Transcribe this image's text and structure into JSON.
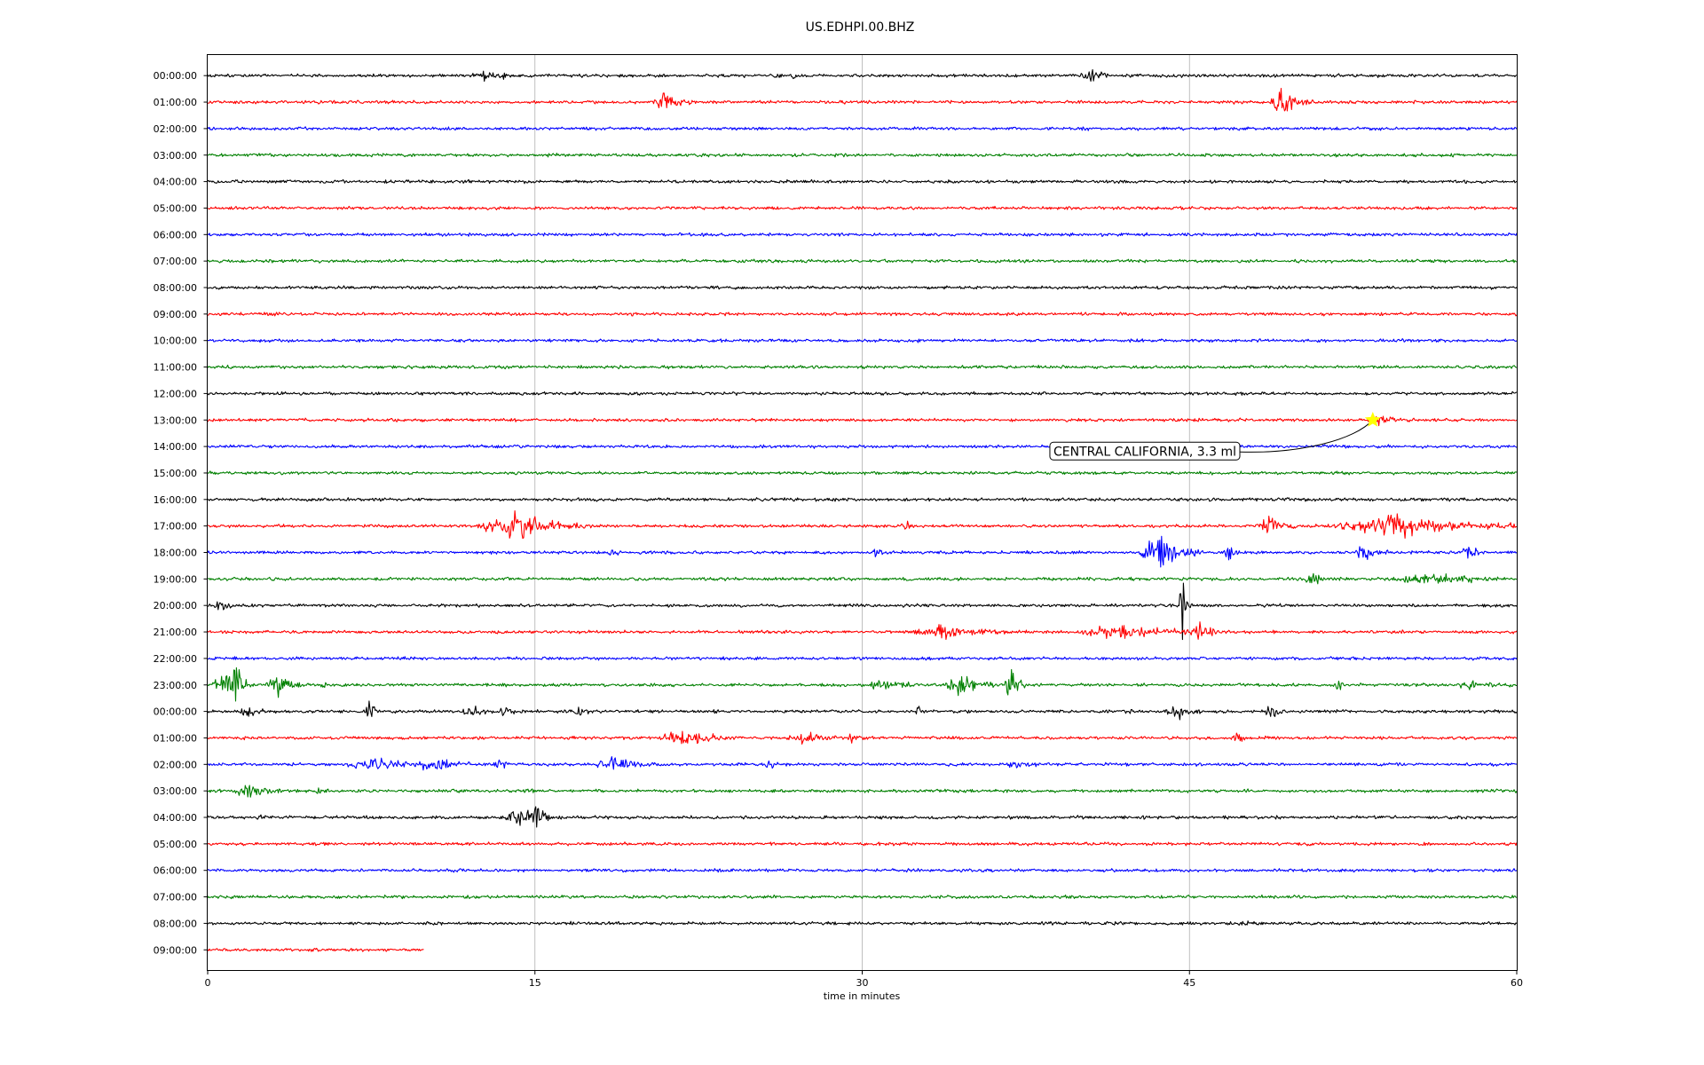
{
  "chart_data": {
    "type": "line",
    "title": "US.EDHPI.00.BHZ",
    "xlabel": "time in minutes",
    "ylabel": "",
    "xlim": [
      0,
      60
    ],
    "xticks": [
      "0",
      "15",
      "30",
      "45",
      "60"
    ],
    "grid": "vertical lines at 15, 30 and 45 minutes",
    "trace_colors": [
      "#000000",
      "#ff0000",
      "#0000ff",
      "#008000"
    ],
    "row_labels": [
      "00:00:00",
      "01:00:00",
      "02:00:00",
      "03:00:00",
      "04:00:00",
      "05:00:00",
      "06:00:00",
      "07:00:00",
      "08:00:00",
      "09:00:00",
      "10:00:00",
      "11:00:00",
      "12:00:00",
      "13:00:00",
      "14:00:00",
      "15:00:00",
      "16:00:00",
      "17:00:00",
      "18:00:00",
      "19:00:00",
      "20:00:00",
      "21:00:00",
      "22:00:00",
      "23:00:00",
      "00:00:00",
      "01:00:00",
      "02:00:00",
      "03:00:00",
      "04:00:00",
      "05:00:00",
      "06:00:00",
      "07:00:00",
      "08:00:00",
      "09:00:00"
    ],
    "last_row_end_minute": 9.9,
    "event": {
      "label": "CENTRAL CALIFORNIA, 3.3 ml",
      "row": 13,
      "minute": 53.4,
      "marker": "star-icon",
      "marker_color": "#ffff00"
    },
    "bursts": [
      {
        "row": 0,
        "minute": 12.8,
        "amp": 0.35,
        "dur": 1.5
      },
      {
        "row": 0,
        "minute": 26.9,
        "amp": 0.25,
        "dur": 0.3
      },
      {
        "row": 0,
        "minute": 40.5,
        "amp": 0.55,
        "dur": 0.8
      },
      {
        "row": 1,
        "minute": 5.1,
        "amp": 0.3,
        "dur": 0.2
      },
      {
        "row": 1,
        "minute": 20.9,
        "amp": 0.55,
        "dur": 1.3
      },
      {
        "row": 1,
        "minute": 49.2,
        "amp": 1.2,
        "dur": 0.9
      },
      {
        "row": 1,
        "minute": 50.3,
        "amp": 0.45,
        "dur": 0.4
      },
      {
        "row": 13,
        "minute": 53.8,
        "amp": 0.35,
        "dur": 0.8
      },
      {
        "row": 17,
        "minute": 14.1,
        "amp": 1.0,
        "dur": 3.0
      },
      {
        "row": 17,
        "minute": 32.0,
        "amp": 0.3,
        "dur": 0.4
      },
      {
        "row": 17,
        "minute": 48.7,
        "amp": 0.7,
        "dur": 1.2
      },
      {
        "row": 17,
        "minute": 54.5,
        "amp": 0.8,
        "dur": 5.0
      },
      {
        "row": 18,
        "minute": 18.6,
        "amp": 0.3,
        "dur": 0.4
      },
      {
        "row": 18,
        "minute": 30.6,
        "amp": 0.3,
        "dur": 0.4
      },
      {
        "row": 18,
        "minute": 43.6,
        "amp": 1.7,
        "dur": 1.6
      },
      {
        "row": 18,
        "minute": 46.8,
        "amp": 0.6,
        "dur": 0.5
      },
      {
        "row": 18,
        "minute": 53.0,
        "amp": 0.55,
        "dur": 0.9
      },
      {
        "row": 18,
        "minute": 57.8,
        "amp": 0.5,
        "dur": 0.6
      },
      {
        "row": 19,
        "minute": 50.6,
        "amp": 0.55,
        "dur": 0.8
      },
      {
        "row": 19,
        "minute": 56.0,
        "amp": 0.4,
        "dur": 3.0
      },
      {
        "row": 20,
        "minute": 0.6,
        "amp": 0.5,
        "dur": 0.6
      },
      {
        "row": 20,
        "minute": 44.7,
        "amp": 2.6,
        "dur": 0.3
      },
      {
        "row": 21,
        "minute": 33.8,
        "amp": 0.45,
        "dur": 2.5
      },
      {
        "row": 21,
        "minute": 41.9,
        "amp": 0.5,
        "dur": 3.5
      },
      {
        "row": 21,
        "minute": 45.5,
        "amp": 0.5,
        "dur": 0.8
      },
      {
        "row": 23,
        "minute": 0.8,
        "amp": 1.2,
        "dur": 1.0
      },
      {
        "row": 23,
        "minute": 1.3,
        "amp": 1.5,
        "dur": 0.4
      },
      {
        "row": 23,
        "minute": 3.2,
        "amp": 0.9,
        "dur": 1.0
      },
      {
        "row": 23,
        "minute": 5.3,
        "amp": 0.35,
        "dur": 0.3
      },
      {
        "row": 23,
        "minute": 31.0,
        "amp": 0.35,
        "dur": 1.5
      },
      {
        "row": 23,
        "minute": 34.6,
        "amp": 0.7,
        "dur": 1.4
      },
      {
        "row": 23,
        "minute": 36.8,
        "amp": 1.5,
        "dur": 0.6
      },
      {
        "row": 23,
        "minute": 51.8,
        "amp": 0.35,
        "dur": 0.5
      },
      {
        "row": 23,
        "minute": 58.0,
        "amp": 0.25,
        "dur": 1.5
      },
      {
        "row": 24,
        "minute": 1.8,
        "amp": 0.4,
        "dur": 1.0
      },
      {
        "row": 24,
        "minute": 7.4,
        "amp": 0.8,
        "dur": 0.4
      },
      {
        "row": 24,
        "minute": 12.1,
        "amp": 0.7,
        "dur": 0.8
      },
      {
        "row": 24,
        "minute": 13.6,
        "amp": 0.45,
        "dur": 0.4
      },
      {
        "row": 24,
        "minute": 17.0,
        "amp": 0.3,
        "dur": 0.6
      },
      {
        "row": 24,
        "minute": 32.6,
        "amp": 0.3,
        "dur": 0.4
      },
      {
        "row": 24,
        "minute": 42.0,
        "amp": 0.35,
        "dur": 0.4
      },
      {
        "row": 24,
        "minute": 44.5,
        "amp": 0.5,
        "dur": 1.0
      },
      {
        "row": 24,
        "minute": 48.8,
        "amp": 0.9,
        "dur": 0.6
      },
      {
        "row": 25,
        "minute": 21.8,
        "amp": 0.55,
        "dur": 2.0
      },
      {
        "row": 25,
        "minute": 27.4,
        "amp": 0.45,
        "dur": 1.5
      },
      {
        "row": 25,
        "minute": 29.5,
        "amp": 0.3,
        "dur": 0.4
      },
      {
        "row": 25,
        "minute": 47.2,
        "amp": 0.35,
        "dur": 0.4
      },
      {
        "row": 26,
        "minute": 7.8,
        "amp": 0.35,
        "dur": 3.0
      },
      {
        "row": 26,
        "minute": 10.4,
        "amp": 0.5,
        "dur": 1.5
      },
      {
        "row": 26,
        "minute": 13.4,
        "amp": 0.4,
        "dur": 0.5
      },
      {
        "row": 26,
        "minute": 18.6,
        "amp": 0.5,
        "dur": 1.6
      },
      {
        "row": 26,
        "minute": 25.7,
        "amp": 0.3,
        "dur": 0.4
      },
      {
        "row": 26,
        "minute": 37.0,
        "amp": 0.25,
        "dur": 1.0
      },
      {
        "row": 27,
        "minute": 2.0,
        "amp": 0.45,
        "dur": 1.6
      },
      {
        "row": 27,
        "minute": 5.1,
        "amp": 0.3,
        "dur": 0.4
      },
      {
        "row": 27,
        "minute": 14.7,
        "amp": 0.25,
        "dur": 0.4
      },
      {
        "row": 28,
        "minute": 14.3,
        "amp": 0.6,
        "dur": 1.6
      },
      {
        "row": 28,
        "minute": 15.1,
        "amp": 0.9,
        "dur": 0.5
      },
      {
        "row": 28,
        "minute": 2.5,
        "amp": 0.25,
        "dur": 0.4
      },
      {
        "row": 32,
        "minute": 47.5,
        "amp": 0.2,
        "dur": 0.6
      }
    ]
  }
}
